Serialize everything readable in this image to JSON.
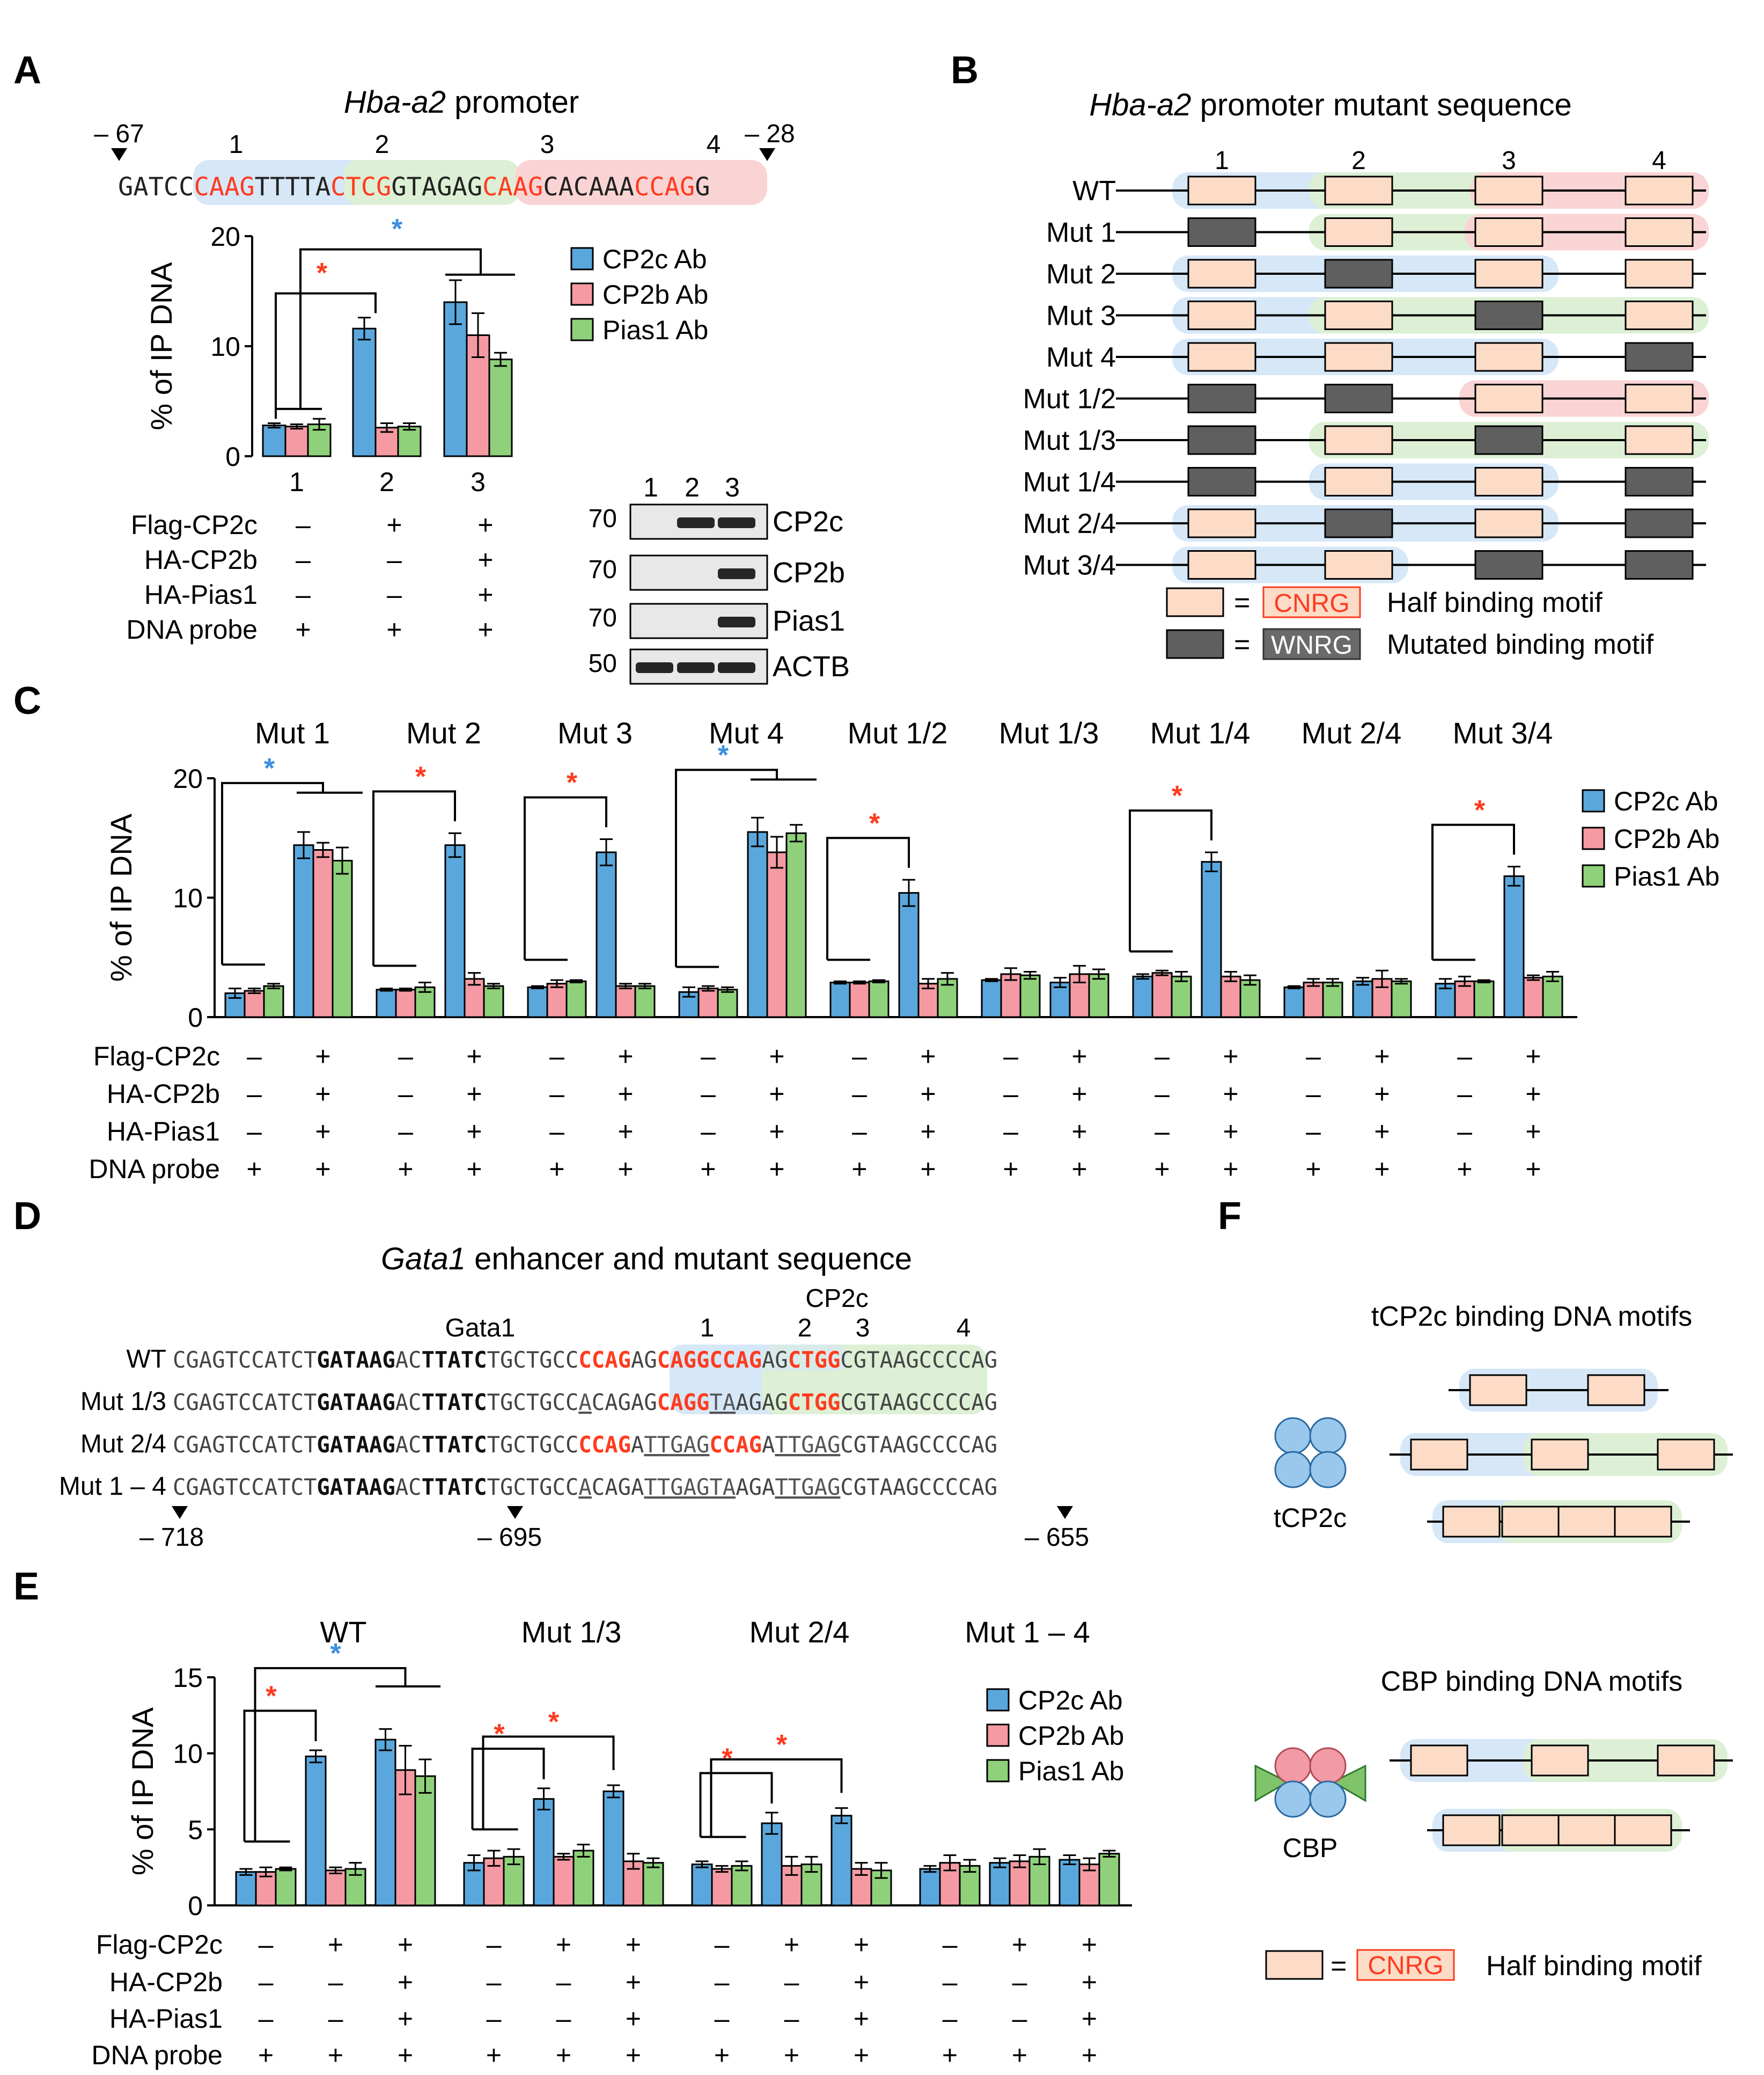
{
  "colors": {
    "cp2c": "#5aa7dd",
    "cp2b": "#f59aa3",
    "pias1": "#8fd17a",
    "sig_red": "#ff3b1f",
    "sig_blue": "#3d8fe0",
    "motif_fill": "#fcdcc7",
    "mut_fill": "#5f5f5f",
    "shade_blue": "#d6e7f7",
    "shade_green": "#ddf0d5",
    "shade_red": "#fad4d4"
  },
  "panels": {
    "A": "A",
    "B": "B",
    "C": "C",
    "D": "D",
    "E": "E",
    "F": "F"
  },
  "legend": [
    "CP2c Ab",
    "CP2b Ab",
    "Pias1 Ab"
  ],
  "treatment_labels": [
    "Flag-CP2c",
    "HA-CP2b",
    "HA-Pias1",
    "DNA probe"
  ],
  "panel_a": {
    "title_italic": "Hba-a2",
    "title_rest": " promoter",
    "pos_left": "– 67",
    "pos_right": "– 28",
    "site_numbers": [
      "1",
      "2",
      "3",
      "4"
    ],
    "sequence": [
      {
        "t": "GATCC",
        "red": false
      },
      {
        "t": "CAAG",
        "red": true
      },
      {
        "t": "TTTTA",
        "red": false
      },
      {
        "t": "CTCG",
        "red": true
      },
      {
        "t": "GTAGAG",
        "red": false
      },
      {
        "t": "CAAG",
        "red": true
      },
      {
        "t": "CACAAA",
        "red": false
      },
      {
        "t": "CCAG",
        "red": true
      },
      {
        "t": "G",
        "red": false
      }
    ],
    "lane_labels": [
      "1",
      "2",
      "3"
    ],
    "treatments": [
      [
        "–",
        "+",
        "+"
      ],
      [
        "–",
        "–",
        "+"
      ],
      [
        "–",
        "–",
        "+"
      ],
      [
        "+",
        "+",
        "+"
      ]
    ],
    "blot": {
      "lane_labels": [
        "1",
        "2",
        "3"
      ],
      "rows": [
        {
          "marker": "70",
          "label": "CP2c",
          "bands": [
            false,
            true,
            true
          ]
        },
        {
          "marker": "70",
          "label": "CP2b",
          "bands": [
            false,
            false,
            true
          ]
        },
        {
          "marker": "70",
          "label": "Pias1",
          "bands": [
            false,
            false,
            true
          ]
        },
        {
          "marker": "50",
          "label": "ACTB",
          "bands": [
            true,
            true,
            true
          ]
        }
      ]
    }
  },
  "panel_b": {
    "title_italic": "Hba-a2",
    "title_rest": " promoter mutant sequence",
    "site_numbers": [
      "1",
      "2",
      "3",
      "4"
    ],
    "rows": [
      {
        "label": "WT",
        "mut": [
          false,
          false,
          false,
          false
        ]
      },
      {
        "label": "Mut 1",
        "mut": [
          true,
          false,
          false,
          false
        ]
      },
      {
        "label": "Mut 2",
        "mut": [
          false,
          true,
          false,
          false
        ]
      },
      {
        "label": "Mut 3",
        "mut": [
          false,
          false,
          true,
          false
        ]
      },
      {
        "label": "Mut 4",
        "mut": [
          false,
          false,
          false,
          true
        ]
      },
      {
        "label": "Mut 1/2",
        "mut": [
          true,
          true,
          false,
          false
        ]
      },
      {
        "label": "Mut 1/3",
        "mut": [
          true,
          false,
          true,
          false
        ]
      },
      {
        "label": "Mut 1/4",
        "mut": [
          true,
          false,
          false,
          true
        ]
      },
      {
        "label": "Mut 2/4",
        "mut": [
          false,
          true,
          false,
          true
        ]
      },
      {
        "label": "Mut 3/4",
        "mut": [
          false,
          false,
          true,
          true
        ]
      }
    ],
    "legend": [
      {
        "eq": "=",
        "code": "CNRG",
        "text": "Half binding motif"
      },
      {
        "eq": "=",
        "code": "WNRG",
        "text": "Mutated binding motif"
      }
    ]
  },
  "panel_c": {
    "group_titles": [
      "Mut 1",
      "Mut 2",
      "Mut 3",
      "Mut 4",
      "Mut 1/2",
      "Mut 1/3",
      "Mut 1/4",
      "Mut 2/4",
      "Mut 3/4"
    ],
    "treatments": [
      [
        "–",
        "+"
      ],
      [
        "–",
        "+"
      ],
      [
        "–",
        "+"
      ],
      [
        "+",
        "+"
      ]
    ]
  },
  "panel_d": {
    "title_italic": "Gata1",
    "title_rest": " enhancer and mutant sequence",
    "cp2c_label": "CP2c",
    "gata1_label": "Gata1",
    "site_numbers": [
      "1",
      "2",
      "3",
      "4"
    ],
    "rows": [
      {
        "label": "WT",
        "segs": [
          {
            "t": "CGAGTCCATCT",
            "s": "n"
          },
          {
            "t": "GATAAG",
            "s": "b"
          },
          {
            "t": "AC",
            "s": "n"
          },
          {
            "t": "TTATC",
            "s": "b"
          },
          {
            "t": "TGCTGCC",
            "s": "n"
          },
          {
            "t": "CCAG",
            "s": "r"
          },
          {
            "t": "AG",
            "s": "n"
          },
          {
            "t": "CAGGCCAG",
            "s": "r"
          },
          {
            "t": "AG",
            "s": "n"
          },
          {
            "t": "CTGG",
            "s": "r"
          },
          {
            "t": "CGTAAGCCCCAG",
            "s": "n"
          }
        ]
      },
      {
        "label": "Mut 1/3",
        "segs": [
          {
            "t": "CGAGTCCATCT",
            "s": "n"
          },
          {
            "t": "GATAAG",
            "s": "b"
          },
          {
            "t": "AC",
            "s": "n"
          },
          {
            "t": "TTATC",
            "s": "b"
          },
          {
            "t": "TGCTGCC",
            "s": "n"
          },
          {
            "t": "A",
            "s": "u"
          },
          {
            "t": "CAGAG",
            "s": "n"
          },
          {
            "t": "CAGG",
            "s": "r"
          },
          {
            "t": "TA",
            "s": "u"
          },
          {
            "t": "AGAG",
            "s": "n"
          },
          {
            "t": "CTGG",
            "s": "r"
          },
          {
            "t": "CGTAAGCCCCAG",
            "s": "n"
          }
        ]
      },
      {
        "label": "Mut 2/4",
        "segs": [
          {
            "t": "CGAGTCCATCT",
            "s": "n"
          },
          {
            "t": "GATAAG",
            "s": "b"
          },
          {
            "t": "AC",
            "s": "n"
          },
          {
            "t": "TTATC",
            "s": "b"
          },
          {
            "t": "TGCTGCC",
            "s": "n"
          },
          {
            "t": "CCAG",
            "s": "r"
          },
          {
            "t": "A",
            "s": "n"
          },
          {
            "t": "TTGAG",
            "s": "u"
          },
          {
            "t": "CCAG",
            "s": "r"
          },
          {
            "t": "A",
            "s": "n"
          },
          {
            "t": "TTGAG",
            "s": "u"
          },
          {
            "t": "CGTAAGCCCCAG",
            "s": "n"
          }
        ]
      },
      {
        "label": "Mut 1 – 4",
        "segs": [
          {
            "t": "CGAGTCCATCT",
            "s": "n"
          },
          {
            "t": "GATAAG",
            "s": "b"
          },
          {
            "t": "AC",
            "s": "n"
          },
          {
            "t": "TTATC",
            "s": "b"
          },
          {
            "t": "TGCTGCC",
            "s": "n"
          },
          {
            "t": "A",
            "s": "u"
          },
          {
            "t": "CAGA",
            "s": "n"
          },
          {
            "t": "TTGAG",
            "s": "u"
          },
          {
            "t": "TA",
            "s": "u"
          },
          {
            "t": "AGA",
            "s": "n"
          },
          {
            "t": "TTGAG",
            "s": "u"
          },
          {
            "t": "CGTAAGCCCCAG",
            "s": "n"
          }
        ]
      }
    ],
    "positions": [
      "– 718",
      "– 695",
      "– 655"
    ]
  },
  "panel_e": {
    "group_titles": [
      "WT",
      "Mut 1/3",
      "Mut 2/4",
      "Mut 1 – 4"
    ],
    "treatments": [
      [
        "–",
        "+",
        "+"
      ],
      [
        "–",
        "–",
        "+"
      ],
      [
        "–",
        "–",
        "+"
      ],
      [
        "+",
        "+",
        "+"
      ]
    ]
  },
  "panel_f": {
    "tcp2c_title": "tCP2c binding DNA motifs",
    "tcp2c_label": "tCP2c",
    "cbp_title": "CBP binding DNA motifs",
    "cbp_label": "CBP",
    "legend_eq": "=",
    "legend_code": "CNRG",
    "legend_text": "Half binding motif"
  },
  "chart_data": [
    {
      "type": "bar",
      "panel": "A",
      "ylabel": "% of IP DNA",
      "ylim": [
        0,
        20
      ],
      "yticks": [
        0,
        10,
        20
      ],
      "categories": [
        "1",
        "2",
        "3"
      ],
      "series": [
        {
          "name": "CP2c Ab",
          "values": [
            2.8,
            11.6,
            14.0
          ],
          "errors": [
            0.2,
            1.0,
            2.0
          ]
        },
        {
          "name": "CP2b Ab",
          "values": [
            2.7,
            2.6,
            11.0
          ],
          "errors": [
            0.2,
            0.4,
            2.0
          ]
        },
        {
          "name": "Pias1 Ab",
          "values": [
            2.9,
            2.7,
            8.8
          ],
          "errors": [
            0.5,
            0.3,
            0.6
          ]
        }
      ],
      "significance": [
        {
          "from": 0,
          "to": 1,
          "color": "red",
          "mark": "*"
        },
        {
          "from": 0,
          "to": 2,
          "color": "blue",
          "mark": "*"
        }
      ]
    },
    {
      "type": "bar",
      "panel": "C",
      "ylabel": "% of IP DNA",
      "ylim": [
        0,
        20
      ],
      "yticks": [
        0,
        10,
        20
      ],
      "groups": [
        {
          "title": "Mut 1",
          "sig": "blue",
          "sig_span": "bracket",
          "lanes": [
            [
              2.0,
              2.2,
              2.6
            ],
            [
              14.4,
              14.0,
              13.1
            ]
          ],
          "errors": [
            [
              0.4,
              0.2,
              0.2
            ],
            [
              1.1,
              0.6,
              1.1
            ]
          ]
        },
        {
          "title": "Mut 2",
          "sig": "red",
          "sig_span": "single",
          "lanes": [
            [
              2.3,
              2.3,
              2.5
            ],
            [
              14.4,
              3.2,
              2.6
            ]
          ],
          "errors": [
            [
              0.1,
              0.1,
              0.4
            ],
            [
              1.0,
              0.5,
              0.2
            ]
          ]
        },
        {
          "title": "Mut 3",
          "sig": "red",
          "sig_span": "single",
          "lanes": [
            [
              2.5,
              2.8,
              3.0
            ],
            [
              13.8,
              2.6,
              2.6
            ]
          ],
          "errors": [
            [
              0.1,
              0.3,
              0.1
            ],
            [
              1.1,
              0.2,
              0.2
            ]
          ]
        },
        {
          "title": "Mut 4",
          "sig": "blue",
          "sig_span": "bracket",
          "lanes": [
            [
              2.1,
              2.4,
              2.3
            ],
            [
              15.5,
              13.8,
              15.4
            ]
          ],
          "errors": [
            [
              0.4,
              0.2,
              0.2
            ],
            [
              1.2,
              1.3,
              0.7
            ]
          ]
        },
        {
          "title": "Mut 1/2",
          "sig": "red",
          "sig_span": "single",
          "lanes": [
            [
              2.9,
              2.9,
              3.0
            ],
            [
              10.4,
              2.8,
              3.2
            ]
          ],
          "errors": [
            [
              0.1,
              0.1,
              0.1
            ],
            [
              1.1,
              0.4,
              0.5
            ]
          ]
        },
        {
          "title": "Mut 1/3",
          "sig": "none",
          "sig_span": "none",
          "lanes": [
            [
              3.1,
              3.6,
              3.5
            ],
            [
              2.9,
              3.6,
              3.6
            ]
          ],
          "errors": [
            [
              0.1,
              0.5,
              0.3
            ],
            [
              0.4,
              0.7,
              0.4
            ]
          ]
        },
        {
          "title": "Mut 1/4",
          "sig": "red",
          "sig_span": "single",
          "lanes": [
            [
              3.4,
              3.7,
              3.4
            ],
            [
              13.0,
              3.4,
              3.1
            ]
          ],
          "errors": [
            [
              0.2,
              0.2,
              0.4
            ],
            [
              0.8,
              0.4,
              0.4
            ]
          ]
        },
        {
          "title": "Mut 2/4",
          "sig": "none",
          "sig_span": "none",
          "lanes": [
            [
              2.5,
              2.9,
              2.9
            ],
            [
              3.0,
              3.2,
              3.0
            ]
          ],
          "errors": [
            [
              0.1,
              0.3,
              0.3
            ],
            [
              0.3,
              0.7,
              0.2
            ]
          ]
        },
        {
          "title": "Mut 3/4",
          "sig": "red",
          "sig_span": "single",
          "lanes": [
            [
              2.8,
              3.0,
              3.0
            ],
            [
              11.8,
              3.3,
              3.4
            ]
          ],
          "errors": [
            [
              0.4,
              0.4,
              0.1
            ],
            [
              0.8,
              0.2,
              0.4
            ]
          ]
        }
      ]
    },
    {
      "type": "bar",
      "panel": "E",
      "ylabel": "% of IP DNA",
      "ylim": [
        0,
        15
      ],
      "yticks": [
        0,
        5,
        10,
        15
      ],
      "groups": [
        {
          "title": "WT",
          "sig": [
            "red",
            "blue"
          ],
          "lanes": [
            [
              2.2,
              2.2,
              2.4
            ],
            [
              9.8,
              2.3,
              2.4
            ],
            [
              10.9,
              8.9,
              8.5
            ]
          ],
          "errors": [
            [
              0.2,
              0.3,
              0.1
            ],
            [
              0.4,
              0.2,
              0.4
            ],
            [
              0.7,
              1.6,
              1.1
            ]
          ]
        },
        {
          "title": "Mut 1/3",
          "sig": [
            "red",
            "red"
          ],
          "lanes": [
            [
              2.8,
              3.1,
              3.2
            ],
            [
              7.0,
              3.2,
              3.6
            ],
            [
              7.5,
              2.9,
              2.8
            ]
          ],
          "errors": [
            [
              0.5,
              0.5,
              0.5
            ],
            [
              0.7,
              0.2,
              0.4
            ],
            [
              0.4,
              0.5,
              0.3
            ]
          ]
        },
        {
          "title": "Mut 2/4",
          "sig": [
            "red",
            "red"
          ],
          "lanes": [
            [
              2.7,
              2.4,
              2.6
            ],
            [
              5.4,
              2.6,
              2.7
            ],
            [
              5.9,
              2.4,
              2.3
            ]
          ],
          "errors": [
            [
              0.2,
              0.2,
              0.3
            ],
            [
              0.7,
              0.6,
              0.5
            ],
            [
              0.5,
              0.4,
              0.5
            ]
          ]
        },
        {
          "title": "Mut 1 – 4",
          "sig": [],
          "lanes": [
            [
              2.4,
              2.8,
              2.6
            ],
            [
              2.8,
              2.9,
              3.2
            ],
            [
              3.0,
              2.7,
              3.4
            ]
          ],
          "errors": [
            [
              0.2,
              0.5,
              0.4
            ],
            [
              0.3,
              0.4,
              0.5
            ],
            [
              0.3,
              0.4,
              0.2
            ]
          ]
        }
      ]
    }
  ]
}
